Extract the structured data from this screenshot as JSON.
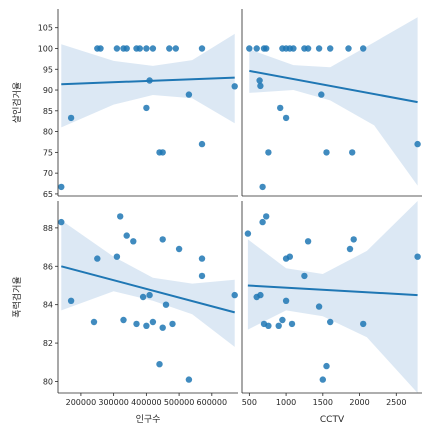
{
  "chart_data": [
    {
      "type": "scatter",
      "panel": "row1-col1",
      "xlabel": "",
      "ylabel": "살인검거율",
      "xlim": [
        130000,
        680000
      ],
      "ylim": [
        64.5,
        109.5
      ],
      "xticks": [],
      "yticks": [
        65,
        70,
        75,
        80,
        85,
        90,
        95,
        100,
        105
      ],
      "ytick_labels": [
        "65",
        "70",
        "75",
        "80",
        "85",
        "90",
        "95",
        "100",
        "105"
      ],
      "points": [
        [
          140000,
          66.7
        ],
        [
          170000,
          83.3
        ],
        [
          250000,
          100
        ],
        [
          260000,
          100
        ],
        [
          310000,
          100
        ],
        [
          330000,
          100
        ],
        [
          340000,
          100
        ],
        [
          370000,
          100
        ],
        [
          380000,
          100
        ],
        [
          400000,
          100
        ],
        [
          420000,
          100
        ],
        [
          470000,
          100
        ],
        [
          490000,
          100
        ],
        [
          570000,
          100
        ],
        [
          400000,
          85.7
        ],
        [
          410000,
          92.3
        ],
        [
          440000,
          75
        ],
        [
          450000,
          75
        ],
        [
          530000,
          88.9
        ],
        [
          570000,
          77
        ],
        [
          670000,
          90.9
        ]
      ],
      "fit_line": [
        [
          140000,
          91.4
        ],
        [
          670000,
          93.0
        ]
      ],
      "ci_band": {
        "x": [
          140000,
          300000,
          420000,
          540000,
          670000
        ],
        "upper": [
          101.0,
          97.0,
          95.8,
          97.2,
          103.5
        ],
        "lower": [
          81.0,
          86.5,
          88.8,
          88.0,
          82.0
        ]
      }
    },
    {
      "type": "scatter",
      "panel": "row1-col2",
      "xlabel": "",
      "ylabel": "",
      "xlim": [
        400,
        2850
      ],
      "ylim": [
        64.5,
        109.5
      ],
      "xticks": [],
      "yticks": [],
      "points": [
        [
          500,
          100
        ],
        [
          600,
          100
        ],
        [
          700,
          100
        ],
        [
          730,
          100
        ],
        [
          950,
          100
        ],
        [
          1000,
          100
        ],
        [
          1050,
          100
        ],
        [
          1100,
          100
        ],
        [
          1250,
          100
        ],
        [
          1300,
          100
        ],
        [
          1450,
          100
        ],
        [
          1600,
          100
        ],
        [
          1850,
          100
        ],
        [
          2050,
          100
        ],
        [
          650,
          91
        ],
        [
          640,
          92.3
        ],
        [
          760,
          75
        ],
        [
          920,
          85.7
        ],
        [
          1000,
          83.3
        ],
        [
          1480,
          88.9
        ],
        [
          1550,
          75
        ],
        [
          1900,
          75
        ],
        [
          680,
          66.7
        ],
        [
          2790,
          77
        ]
      ],
      "fit_line": [
        [
          500,
          94.6
        ],
        [
          2790,
          87.1
        ]
      ],
      "ci_band": {
        "x": [
          500,
          1100,
          1600,
          2200,
          2790
        ],
        "upper": [
          99.8,
          96.0,
          95.5,
          101.5,
          107.5
        ],
        "lower": [
          89.3,
          90.0,
          87.5,
          81.5,
          67.0
        ]
      }
    },
    {
      "type": "scatter",
      "panel": "row2-col1",
      "xlabel": "인구수",
      "ylabel": "폭력검거율",
      "xlim": [
        130000,
        680000
      ],
      "ylim": [
        79.4,
        89.4
      ],
      "xticks": [
        200000,
        300000,
        400000,
        500000,
        600000
      ],
      "xtick_labels": [
        "200000",
        "300000",
        "400000",
        "500000",
        "600000"
      ],
      "yticks": [
        80,
        82,
        84,
        86,
        88
      ],
      "ytick_labels": [
        "80",
        "82",
        "84",
        "86",
        "88"
      ],
      "points": [
        [
          140000,
          88.3
        ],
        [
          170000,
          84.2
        ],
        [
          240000,
          83.1
        ],
        [
          250000,
          86.4
        ],
        [
          310000,
          86.5
        ],
        [
          320000,
          88.6
        ],
        [
          330000,
          83.2
        ],
        [
          340000,
          87.6
        ],
        [
          360000,
          87.3
        ],
        [
          370000,
          83.0
        ],
        [
          390000,
          84.4
        ],
        [
          400000,
          82.9
        ],
        [
          410000,
          84.5
        ],
        [
          420000,
          83.1
        ],
        [
          440000,
          80.9
        ],
        [
          450000,
          87.4
        ],
        [
          450000,
          82.8
        ],
        [
          460000,
          84.0
        ],
        [
          480000,
          83.0
        ],
        [
          500000,
          86.9
        ],
        [
          530000,
          80.1
        ],
        [
          570000,
          85.5
        ],
        [
          570000,
          86.4
        ],
        [
          670000,
          84.5
        ]
      ],
      "fit_line": [
        [
          140000,
          86.0
        ],
        [
          670000,
          83.6
        ]
      ],
      "ci_band": {
        "x": [
          140000,
          300000,
          420000,
          540000,
          670000
        ],
        "upper": [
          88.4,
          86.5,
          85.4,
          85.1,
          85.3
        ],
        "lower": [
          83.7,
          84.7,
          84.2,
          83.5,
          81.8
        ]
      }
    },
    {
      "type": "scatter",
      "panel": "row2-col2",
      "xlabel": "CCTV",
      "ylabel": "",
      "xlim": [
        400,
        2850
      ],
      "ylim": [
        79.4,
        89.4
      ],
      "xticks": [
        500,
        1000,
        1500,
        2000,
        2500
      ],
      "xtick_labels": [
        "500",
        "1000",
        "1500",
        "2000",
        "2500"
      ],
      "yticks": [],
      "points": [
        [
          480,
          87.7
        ],
        [
          600,
          84.4
        ],
        [
          650,
          84.5
        ],
        [
          680,
          88.3
        ],
        [
          700,
          83.0
        ],
        [
          730,
          88.6
        ],
        [
          760,
          82.9
        ],
        [
          900,
          82.9
        ],
        [
          950,
          83.2
        ],
        [
          1000,
          84.2
        ],
        [
          1000,
          86.4
        ],
        [
          1050,
          86.5
        ],
        [
          1080,
          83.0
        ],
        [
          1250,
          85.5
        ],
        [
          1300,
          87.3
        ],
        [
          1450,
          83.9
        ],
        [
          1500,
          80.1
        ],
        [
          1550,
          80.8
        ],
        [
          1600,
          83.1
        ],
        [
          1870,
          86.9
        ],
        [
          1920,
          87.4
        ],
        [
          2050,
          83.0
        ],
        [
          2790,
          86.5
        ]
      ],
      "fit_line": [
        [
          480,
          85.0
        ],
        [
          2790,
          84.5
        ]
      ],
      "ci_band": {
        "x": [
          480,
          1000,
          1500,
          2100,
          2790
        ],
        "upper": [
          87.4,
          85.9,
          85.6,
          86.8,
          89.4
        ],
        "lower": [
          82.7,
          83.7,
          83.4,
          82.3,
          79.4
        ]
      }
    }
  ],
  "colors": {
    "point": "#1f77b4",
    "fit_line": "#1f77b4",
    "ci_band": "#c5d9ec",
    "axis": "#262626"
  }
}
